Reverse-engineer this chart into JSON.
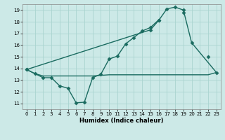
{
  "xlabel": "Humidex (Indice chaleur)",
  "bg_color": "#cce9e7",
  "grid_color": "#aad4d0",
  "line_color": "#1a6b60",
  "xlim": [
    -0.5,
    23.5
  ],
  "ylim": [
    10.5,
    19.5
  ],
  "xticks": [
    0,
    1,
    2,
    3,
    4,
    5,
    6,
    7,
    8,
    9,
    10,
    11,
    12,
    13,
    14,
    15,
    16,
    17,
    18,
    19,
    20,
    21,
    22,
    23
  ],
  "yticks": [
    11,
    12,
    13,
    14,
    15,
    16,
    17,
    18,
    19
  ],
  "series": [
    {
      "x": [
        0,
        1,
        2,
        3,
        4,
        5,
        6,
        7,
        8,
        9,
        10,
        11,
        12,
        13,
        14,
        15,
        16,
        17,
        18,
        19,
        20,
        21,
        22,
        23
      ],
      "y": [
        13.9,
        13.55,
        13.35,
        13.35,
        13.35,
        13.35,
        13.35,
        13.35,
        13.35,
        13.4,
        13.45,
        13.45,
        13.45,
        13.45,
        13.45,
        13.45,
        13.45,
        13.45,
        13.45,
        13.45,
        13.45,
        13.45,
        13.45,
        13.65
      ],
      "marker": false,
      "markersize": 0,
      "linewidth": 1.0
    },
    {
      "x": [
        0,
        1,
        2,
        3,
        4,
        5,
        6,
        7,
        8,
        9,
        10,
        11,
        12,
        13,
        14,
        15,
        16,
        17,
        18,
        19,
        20,
        21,
        22
      ],
      "y": [
        13.9,
        13.55,
        13.2,
        13.2,
        12.5,
        12.3,
        11.05,
        11.1,
        13.2,
        13.5,
        14.8,
        15.05,
        16.1,
        16.65,
        17.2,
        17.5,
        18.15,
        null,
        null,
        18.8,
        null,
        null,
        15.0
      ],
      "marker": true,
      "markersize": 2.5,
      "linewidth": 1.0
    },
    {
      "x": [
        0,
        15,
        16,
        17,
        18,
        19,
        20,
        23
      ],
      "y": [
        13.9,
        17.3,
        18.1,
        19.1,
        19.25,
        19.0,
        16.2,
        13.65
      ],
      "marker": true,
      "markersize": 2.5,
      "linewidth": 1.0
    }
  ]
}
